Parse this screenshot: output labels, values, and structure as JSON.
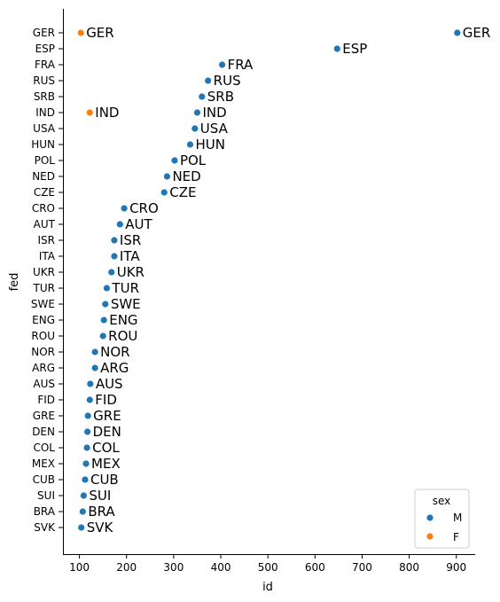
{
  "chart_data": {
    "type": "scatter",
    "xlabel": "id",
    "ylabel": "fed",
    "xlim": [
      65,
      940
    ],
    "xticks": [
      100,
      200,
      300,
      400,
      500,
      600,
      700,
      800,
      900
    ],
    "categories": [
      "GER",
      "ESP",
      "FRA",
      "RUS",
      "SRB",
      "IND",
      "USA",
      "HUN",
      "POL",
      "NED",
      "CZE",
      "CRO",
      "AUT",
      "ISR",
      "ITA",
      "UKR",
      "TUR",
      "SWE",
      "ENG",
      "ROU",
      "NOR",
      "ARG",
      "AUS",
      "FID",
      "GRE",
      "DEN",
      "COL",
      "MEX",
      "CUB",
      "SUI",
      "BRA",
      "SVK"
    ],
    "legend": {
      "title": "sex",
      "position": "lower-right",
      "entries": [
        {
          "label": "M",
          "color": "#1f77b4"
        },
        {
          "label": "F",
          "color": "#ff7f0e"
        }
      ]
    },
    "points": [
      {
        "fed": "GER",
        "x": 902,
        "sex": "M",
        "label": "GER"
      },
      {
        "fed": "GER",
        "x": 103,
        "sex": "F",
        "label": "GER"
      },
      {
        "fed": "ESP",
        "x": 647,
        "sex": "M",
        "label": "ESP"
      },
      {
        "fed": "FRA",
        "x": 403,
        "sex": "M",
        "label": "FRA"
      },
      {
        "fed": "RUS",
        "x": 373,
        "sex": "M",
        "label": "RUS"
      },
      {
        "fed": "SRB",
        "x": 360,
        "sex": "M",
        "label": "SRB"
      },
      {
        "fed": "IND",
        "x": 350,
        "sex": "M",
        "label": "IND"
      },
      {
        "fed": "IND",
        "x": 122,
        "sex": "F",
        "label": "IND"
      },
      {
        "fed": "USA",
        "x": 345,
        "sex": "M",
        "label": "USA"
      },
      {
        "fed": "HUN",
        "x": 335,
        "sex": "M",
        "label": "HUN"
      },
      {
        "fed": "POL",
        "x": 302,
        "sex": "M",
        "label": "POL"
      },
      {
        "fed": "NED",
        "x": 286,
        "sex": "M",
        "label": "NED"
      },
      {
        "fed": "CZE",
        "x": 280,
        "sex": "M",
        "label": "CZE"
      },
      {
        "fed": "CRO",
        "x": 195,
        "sex": "M",
        "label": "CRO"
      },
      {
        "fed": "AUT",
        "x": 186,
        "sex": "M",
        "label": "AUT"
      },
      {
        "fed": "ISR",
        "x": 174,
        "sex": "M",
        "label": "ISR"
      },
      {
        "fed": "ITA",
        "x": 174,
        "sex": "M",
        "label": "ITA"
      },
      {
        "fed": "UKR",
        "x": 168,
        "sex": "M",
        "label": "UKR"
      },
      {
        "fed": "TUR",
        "x": 158,
        "sex": "M",
        "label": "TUR"
      },
      {
        "fed": "SWE",
        "x": 155,
        "sex": "M",
        "label": "SWE"
      },
      {
        "fed": "ENG",
        "x": 152,
        "sex": "M",
        "label": "ENG"
      },
      {
        "fed": "ROU",
        "x": 150,
        "sex": "M",
        "label": "ROU"
      },
      {
        "fed": "NOR",
        "x": 133,
        "sex": "M",
        "label": "NOR"
      },
      {
        "fed": "ARG",
        "x": 133,
        "sex": "M",
        "label": "ARG"
      },
      {
        "fed": "AUS",
        "x": 123,
        "sex": "M",
        "label": "AUS"
      },
      {
        "fed": "FID",
        "x": 122,
        "sex": "M",
        "label": "FID"
      },
      {
        "fed": "GRE",
        "x": 118,
        "sex": "M",
        "label": "GRE"
      },
      {
        "fed": "DEN",
        "x": 117,
        "sex": "M",
        "label": "DEN"
      },
      {
        "fed": "COL",
        "x": 116,
        "sex": "M",
        "label": "COL"
      },
      {
        "fed": "MEX",
        "x": 114,
        "sex": "M",
        "label": "MEX"
      },
      {
        "fed": "CUB",
        "x": 112,
        "sex": "M",
        "label": "CUB"
      },
      {
        "fed": "SUI",
        "x": 109,
        "sex": "M",
        "label": "SUI"
      },
      {
        "fed": "BRA",
        "x": 107,
        "sex": "M",
        "label": "BRA"
      },
      {
        "fed": "SVK",
        "x": 104,
        "sex": "M",
        "label": "SVK"
      }
    ]
  }
}
